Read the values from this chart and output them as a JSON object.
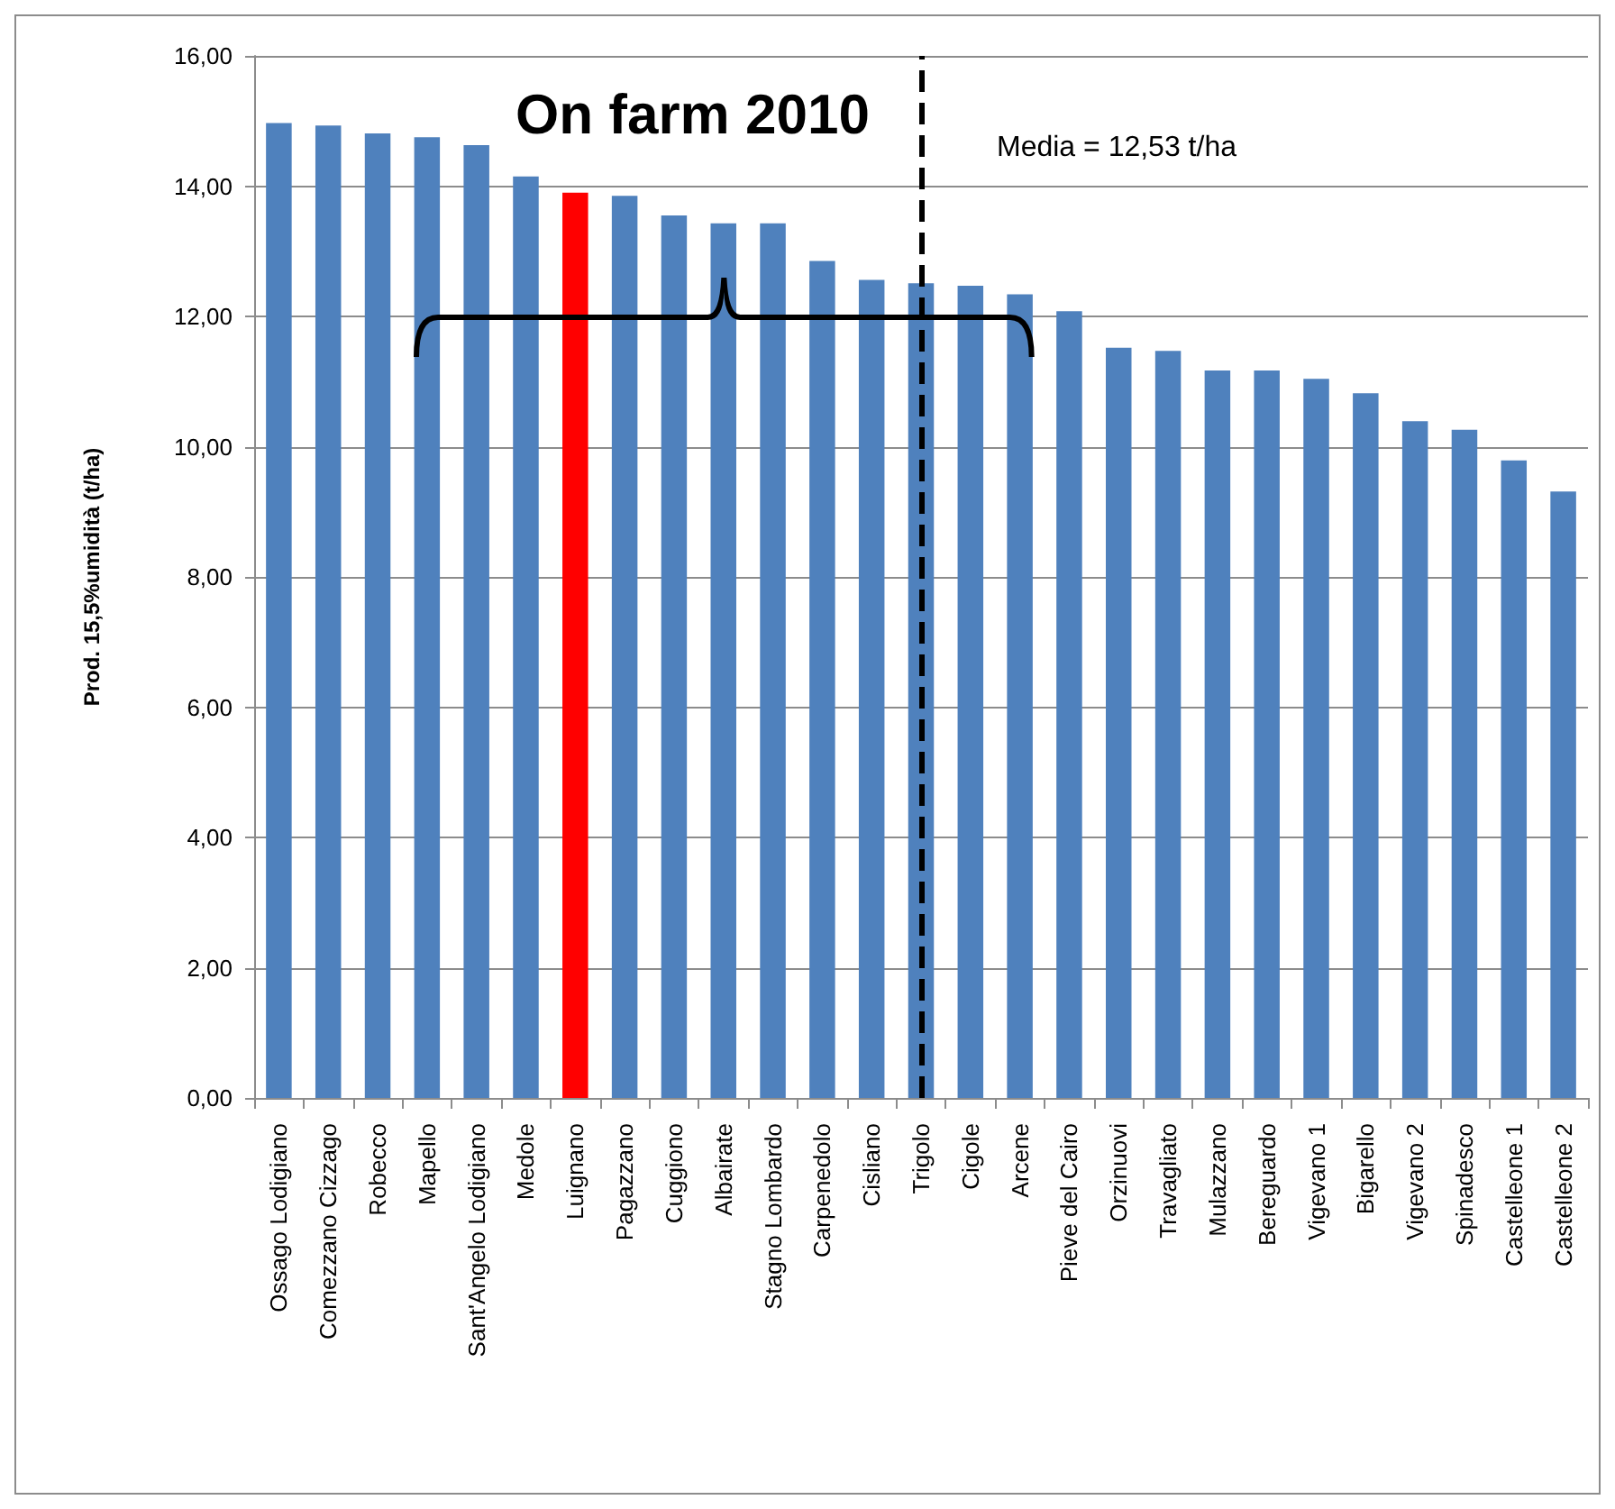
{
  "chart_data": {
    "type": "bar",
    "title": "On farm 2010",
    "ylabel": "Prod. 15,5%umidità (t/ha)",
    "categories": [
      "Ossago Lodigiano",
      "Comezzano Cizzago",
      "Robecco",
      "Mapello",
      "Sant'Angelo Lodigiano",
      "Medole",
      "Luignano",
      "Pagazzano",
      "Cuggiono",
      "Albairate",
      "Stagno Lombardo",
      "Carpenedolo",
      "Cisliano",
      "Trigolo",
      "Cigole",
      "Arcene",
      "Pieve del Cairo",
      "Orzinuovi",
      "Travagliato",
      "Mulazzano",
      "Bereguardo",
      "Vigevano 1",
      "Bigarello",
      "Vigevano 2",
      "Spinadesco",
      "Castelleone 1",
      "Castelleone 2"
    ],
    "values": [
      14.97,
      14.93,
      14.81,
      14.75,
      14.63,
      14.15,
      13.9,
      13.85,
      13.55,
      13.43,
      13.43,
      12.85,
      12.56,
      12.51,
      12.47,
      12.34,
      12.08,
      11.52,
      11.47,
      11.17,
      11.17,
      11.04,
      10.82,
      10.39,
      10.26,
      9.79,
      9.31
    ],
    "colors": [
      "#4f81bd",
      "#4f81bd",
      "#4f81bd",
      "#4f81bd",
      "#4f81bd",
      "#4f81bd",
      "#ff0000",
      "#4f81bd",
      "#4f81bd",
      "#4f81bd",
      "#4f81bd",
      "#4f81bd",
      "#4f81bd",
      "#4f81bd",
      "#4f81bd",
      "#4f81bd",
      "#4f81bd",
      "#4f81bd",
      "#4f81bd",
      "#4f81bd",
      "#4f81bd",
      "#4f81bd",
      "#4f81bd",
      "#4f81bd",
      "#4f81bd",
      "#4f81bd",
      "#4f81bd"
    ],
    "ylim": [
      0,
      16
    ],
    "yticks": [
      {
        "value": 0,
        "label": "0,00"
      },
      {
        "value": 2,
        "label": "2,00"
      },
      {
        "value": 4,
        "label": "4,00"
      },
      {
        "value": 6,
        "label": "6,00"
      },
      {
        "value": 8,
        "label": "8,00"
      },
      {
        "value": 10,
        "label": "10,00"
      },
      {
        "value": 12,
        "label": "12,00"
      },
      {
        "value": 14,
        "label": "14,00"
      },
      {
        "value": 16,
        "label": "16,00"
      }
    ],
    "grid": "y",
    "ref_lines": [
      {
        "axis": "x",
        "value": "Trigolo",
        "label": "Media = 12,53 t/ha",
        "color": "#000000",
        "line_style": "dashed"
      }
    ]
  }
}
